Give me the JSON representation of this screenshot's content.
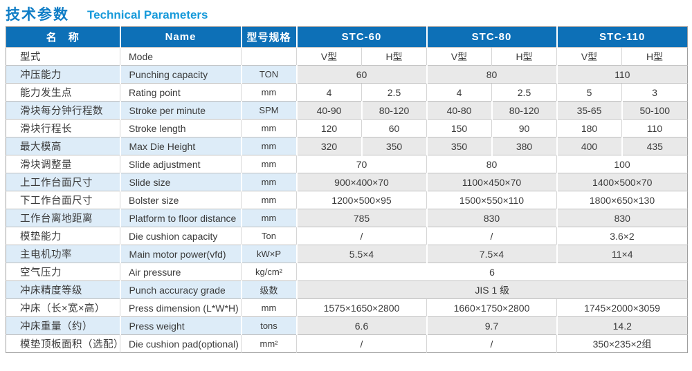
{
  "title": {
    "zh": "技术参数",
    "en": "Technical Parameters"
  },
  "colors": {
    "header_bg": "#0d70b7",
    "title_zh": "#0f7dc6",
    "title_en": "#189ada",
    "tint_blue": "#ddecf8",
    "tint_gray": "#e9e9e9"
  },
  "table": {
    "header": {
      "name_zh": "名　称",
      "name_en": "Name",
      "spec": "型号规格",
      "models": [
        "STC-60",
        "STC-80",
        "STC-110"
      ]
    },
    "sub_columns": [
      "V型",
      "H型"
    ],
    "rows": [
      {
        "zh": "型式",
        "en": "Mode",
        "unit": "",
        "cells": [
          {
            "t": "V型"
          },
          {
            "t": "H型"
          },
          {
            "t": "V型"
          },
          {
            "t": "H型"
          },
          {
            "t": "V型"
          },
          {
            "t": "H型"
          }
        ]
      },
      {
        "zh": "冲压能力",
        "en": "Punching capacity",
        "unit": "TON",
        "cells": [
          {
            "t": "60",
            "span": 2
          },
          {
            "t": "80",
            "span": 2
          },
          {
            "t": "110",
            "span": 2
          }
        ]
      },
      {
        "zh": "能力发生点",
        "en": "Rating point",
        "unit": "mm",
        "cells": [
          {
            "t": "4"
          },
          {
            "t": "2.5"
          },
          {
            "t": "4"
          },
          {
            "t": "2.5"
          },
          {
            "t": "5"
          },
          {
            "t": "3"
          }
        ]
      },
      {
        "zh": "滑块每分钟行程数",
        "en": "Stroke per minute",
        "unit": "SPM",
        "cells": [
          {
            "t": "40-90"
          },
          {
            "t": "80-120"
          },
          {
            "t": "40-80"
          },
          {
            "t": "80-120"
          },
          {
            "t": "35-65"
          },
          {
            "t": "50-100"
          }
        ]
      },
      {
        "zh": "滑块行程长",
        "en": "Stroke length",
        "unit": "mm",
        "cells": [
          {
            "t": "120"
          },
          {
            "t": "60"
          },
          {
            "t": "150"
          },
          {
            "t": "90"
          },
          {
            "t": "180"
          },
          {
            "t": "110"
          }
        ]
      },
      {
        "zh": "最大模高",
        "en": "Max Die Height",
        "unit": "mm",
        "cells": [
          {
            "t": "320"
          },
          {
            "t": "350"
          },
          {
            "t": "350"
          },
          {
            "t": "380"
          },
          {
            "t": "400"
          },
          {
            "t": "435"
          }
        ]
      },
      {
        "zh": "滑块调整量",
        "en": "Slide adjustment",
        "unit": "mm",
        "cells": [
          {
            "t": "70",
            "span": 2
          },
          {
            "t": "80",
            "span": 2
          },
          {
            "t": "100",
            "span": 2
          }
        ]
      },
      {
        "zh": "上工作台面尺寸",
        "en": "Slide size",
        "unit": "mm",
        "cells": [
          {
            "t": "900×400×70",
            "span": 2
          },
          {
            "t": "1100×450×70",
            "span": 2
          },
          {
            "t": "1400×500×70",
            "span": 2
          }
        ]
      },
      {
        "zh": "下工作台面尺寸",
        "en": "Bolster size",
        "unit": "mm",
        "cells": [
          {
            "t": "1200×500×95",
            "span": 2
          },
          {
            "t": "1500×550×110",
            "span": 2
          },
          {
            "t": "1800×650×130",
            "span": 2
          }
        ]
      },
      {
        "zh": "工作台离地距离",
        "en": "Platform to floor distance",
        "unit": "mm",
        "cells": [
          {
            "t": "785",
            "span": 2
          },
          {
            "t": "830",
            "span": 2
          },
          {
            "t": "830",
            "span": 2
          }
        ]
      },
      {
        "zh": "模垫能力",
        "en": "Die cushion capacity",
        "unit": "Ton",
        "cells": [
          {
            "t": "/",
            "span": 2
          },
          {
            "t": "/",
            "span": 2
          },
          {
            "t": "3.6×2",
            "span": 2
          }
        ]
      },
      {
        "zh": "主电机功率",
        "en": "Main motor power(vfd)",
        "unit": "kW×P",
        "cells": [
          {
            "t": "5.5×4",
            "span": 2
          },
          {
            "t": "7.5×4",
            "span": 2
          },
          {
            "t": "11×4",
            "span": 2
          }
        ]
      },
      {
        "zh": "空气压力",
        "en": "Air pressure",
        "unit": "kg/cm²",
        "cells": [
          {
            "t": "6",
            "span": 6
          }
        ]
      },
      {
        "zh": "冲床精度等级",
        "en": "Punch accuracy grade",
        "unit": "级数",
        "cells": [
          {
            "t": "JIS 1 级",
            "span": 6
          }
        ]
      },
      {
        "zh": "冲床（长×宽×高）",
        "en": "Press dimension (L*W*H)",
        "unit": "mm",
        "cells": [
          {
            "t": "1575×1650×2800",
            "span": 2
          },
          {
            "t": "1660×1750×2800",
            "span": 2
          },
          {
            "t": "1745×2000×3059",
            "span": 2
          }
        ]
      },
      {
        "zh": "冲床重量（约）",
        "en": "Press weight",
        "unit": "tons",
        "cells": [
          {
            "t": "6.6",
            "span": 2
          },
          {
            "t": "9.7",
            "span": 2
          },
          {
            "t": "14.2",
            "span": 2
          }
        ]
      },
      {
        "zh": "模垫顶板面积（选配）",
        "en": "Die cushion pad(optional)",
        "unit": "mm²",
        "cells": [
          {
            "t": "/",
            "span": 2
          },
          {
            "t": "/",
            "span": 2
          },
          {
            "t": "350×235×2组",
            "span": 2
          }
        ]
      }
    ]
  }
}
